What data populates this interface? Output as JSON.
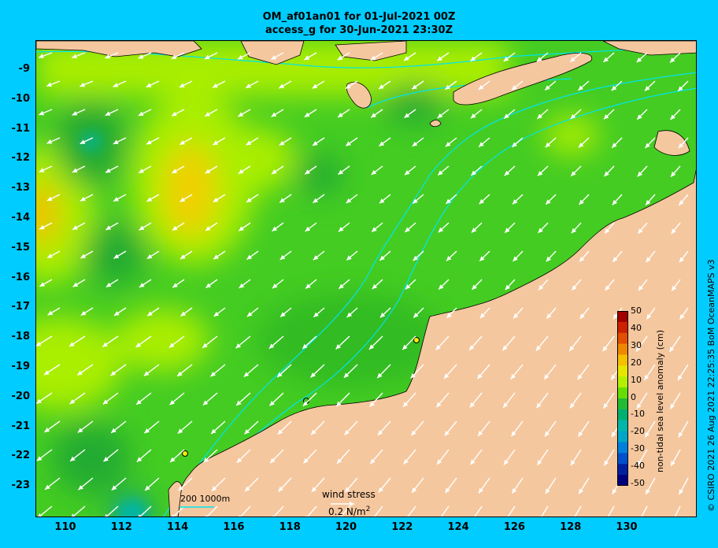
{
  "header": {
    "title_line1": "OM_af01an01 for 01-Jul-2021 00Z",
    "title_line2": "access_g for 30-Jun-2021 23:30Z"
  },
  "axes": {
    "y_ticks": [
      "-9",
      "-10",
      "-11",
      "-12",
      "-13",
      "-14",
      "-15",
      "-16",
      "-17",
      "-18",
      "-19",
      "-20",
      "-21",
      "-22",
      "-23"
    ],
    "x_ticks": [
      "110",
      "112",
      "114",
      "116",
      "118",
      "120",
      "122",
      "124",
      "126",
      "128",
      "130"
    ],
    "lon_range": [
      109,
      132
    ],
    "lat_range": [
      -24,
      -8.1
    ]
  },
  "colorbar": {
    "title": "non-tidal sea level anomaly (cm)",
    "ticks": [
      "50",
      "40",
      "30",
      "20",
      "10",
      "0",
      "-10",
      "-20",
      "-30",
      "-40",
      "-50"
    ],
    "colors": [
      "#a00000",
      "#cc2200",
      "#e05000",
      "#ee8800",
      "#f6c000",
      "#e6e600",
      "#b4ee00",
      "#66dd00",
      "#22bb33",
      "#00b070",
      "#00b6aa",
      "#00a6c8",
      "#0080dd",
      "#0050cc",
      "#0020a0",
      "#000080"
    ]
  },
  "legend": {
    "bathymetry_label": "200  1000m",
    "wind_label": "wind stress",
    "wind_value": "0.2 N/m",
    "wind_superscript": "2"
  },
  "credit": "© CSIRO 2021   26 Aug 2021 22:25:35 BoM OceanMAPS v3",
  "map_colors": {
    "land": "#f5c79e",
    "contour": "#00e5ee",
    "ocean_base": "#44cc22",
    "arrow": "#ffffff"
  }
}
